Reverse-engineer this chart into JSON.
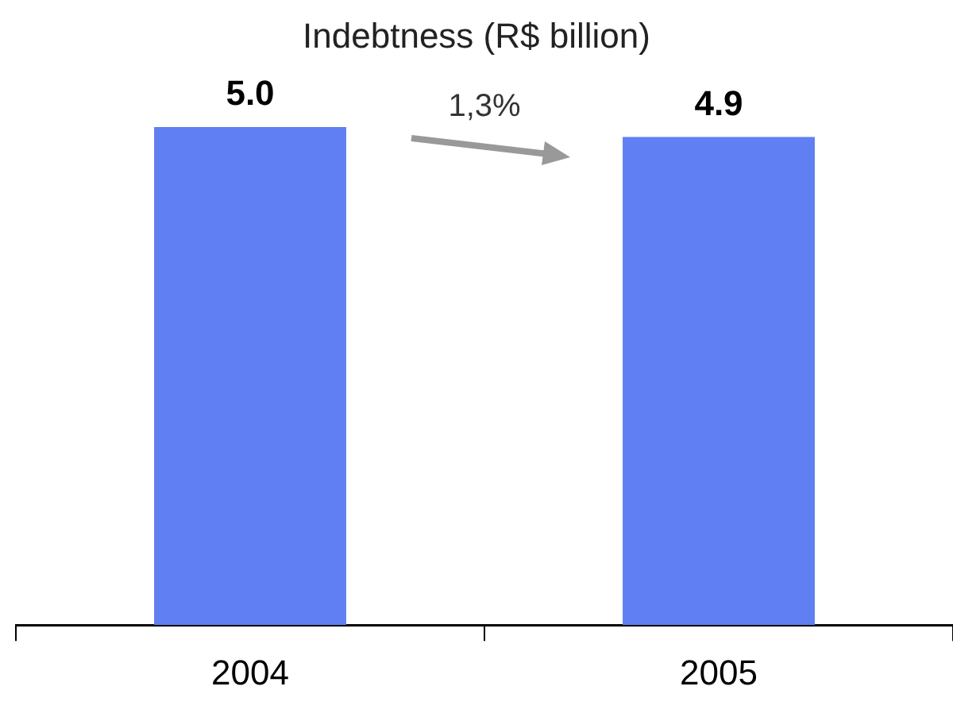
{
  "chart_data": {
    "type": "bar",
    "title": "Indebtness (R$ billion)",
    "categories": [
      "2004",
      "2005"
    ],
    "values": [
      5.0,
      4.9
    ],
    "value_labels": [
      "5.0",
      "4.9"
    ],
    "color": "#5f7ff2",
    "annotations": [
      "1,3%"
    ],
    "grid": false,
    "legend": false
  }
}
